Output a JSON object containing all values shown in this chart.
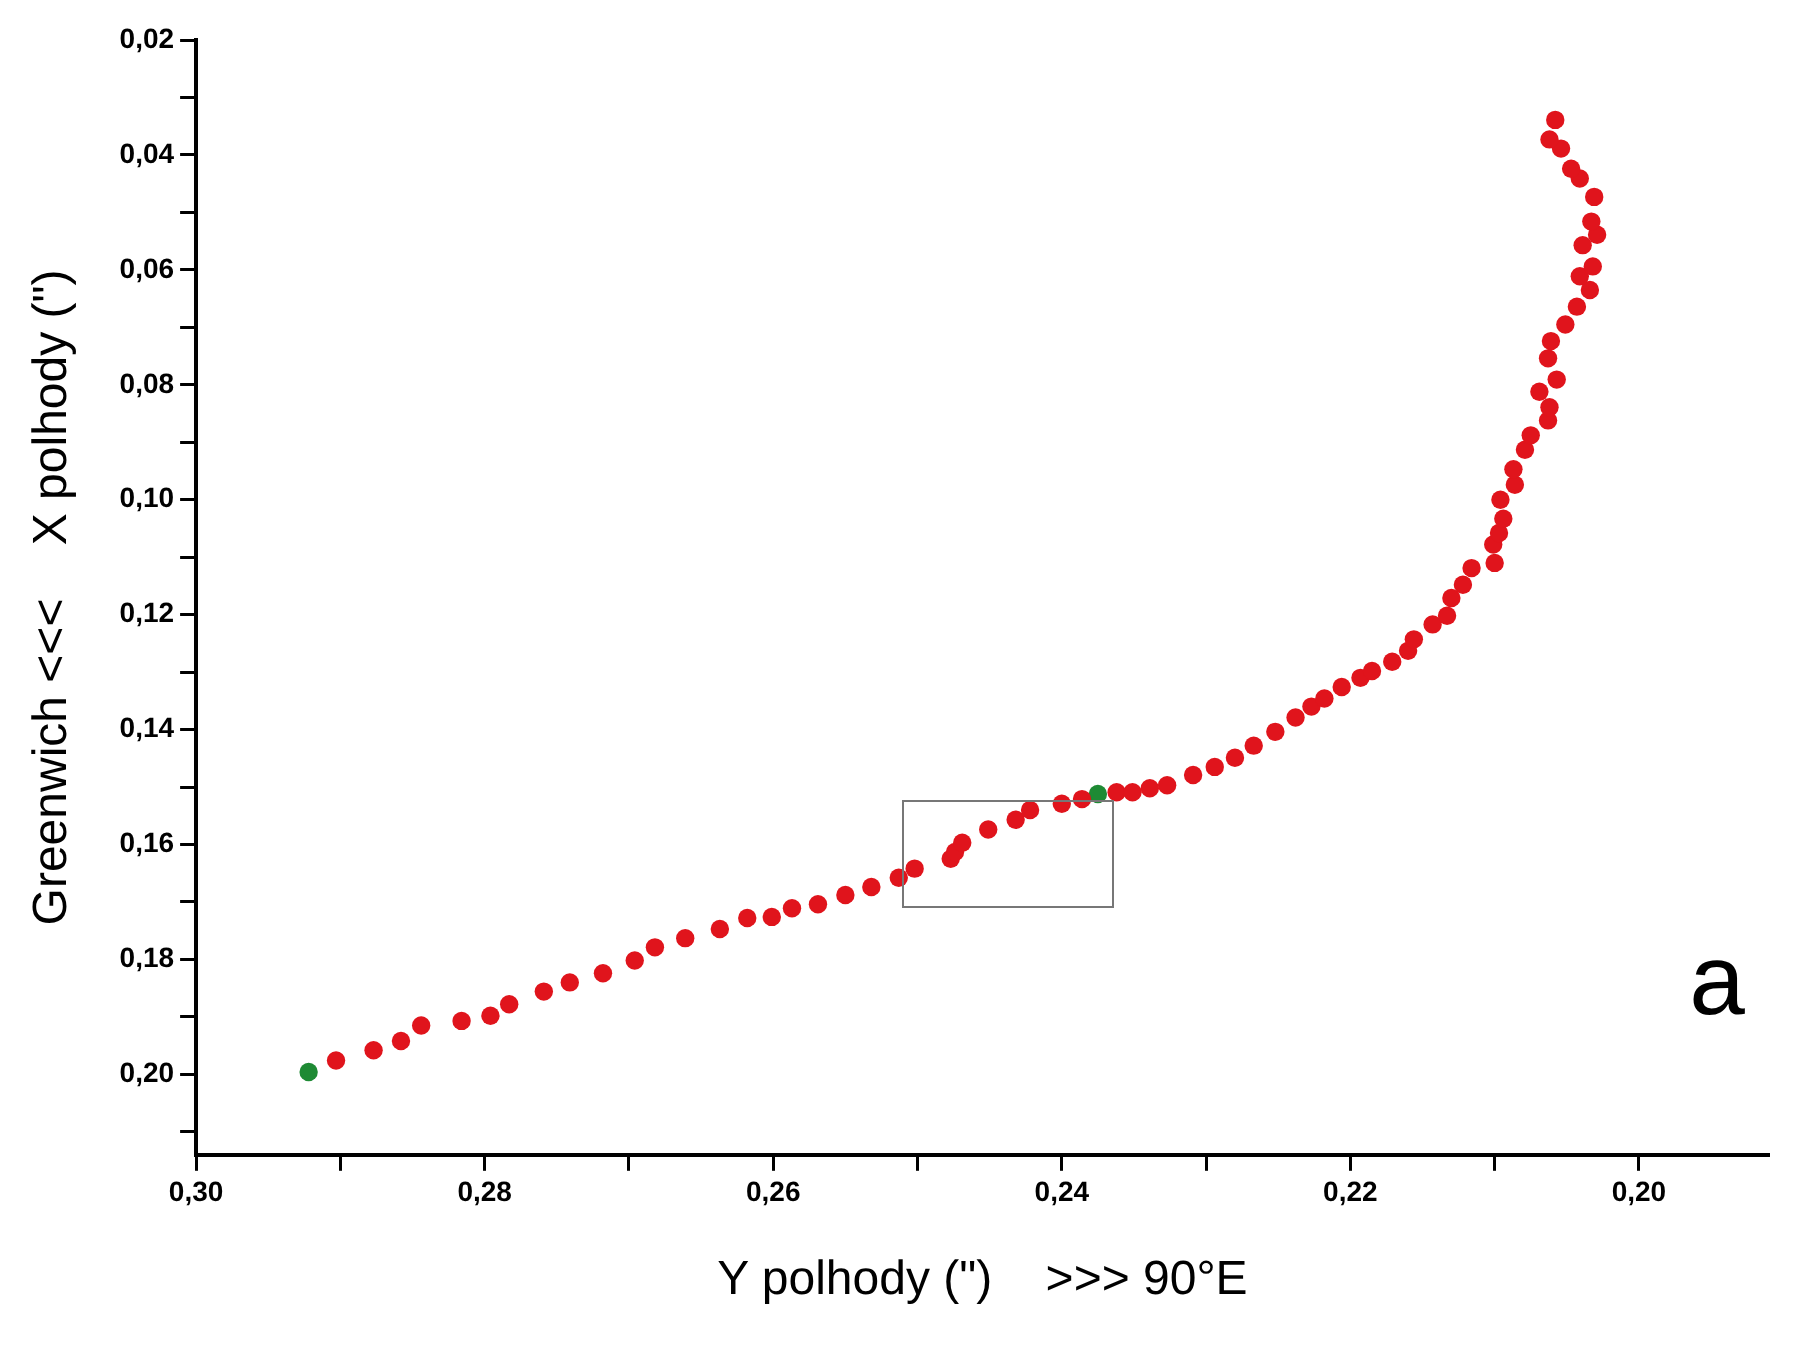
{
  "chart_data": {
    "type": "scatter",
    "xlabel": "Y polhody (\")    >>> 90°E",
    "ylabel": "Greenwich <<<    X polhody (\")",
    "annotations": [
      "a"
    ],
    "xlim": [
      0.3,
      0.191
    ],
    "ylim": [
      0.214,
      0.02
    ],
    "xticks": [
      {
        "value": 0.3,
        "label": "0,30"
      },
      {
        "value": 0.29,
        "label": null
      },
      {
        "value": 0.28,
        "label": "0,28"
      },
      {
        "value": 0.27,
        "label": null
      },
      {
        "value": 0.26,
        "label": "0,26"
      },
      {
        "value": 0.25,
        "label": null
      },
      {
        "value": 0.24,
        "label": "0,24"
      },
      {
        "value": 0.23,
        "label": null
      },
      {
        "value": 0.22,
        "label": "0,22"
      },
      {
        "value": 0.21,
        "label": null
      },
      {
        "value": 0.2,
        "label": "0,20"
      }
    ],
    "yticks": [
      {
        "value": 0.02,
        "label": "0,02"
      },
      {
        "value": 0.03,
        "label": null
      },
      {
        "value": 0.04,
        "label": "0,04"
      },
      {
        "value": 0.05,
        "label": null
      },
      {
        "value": 0.06,
        "label": "0,06"
      },
      {
        "value": 0.07,
        "label": null
      },
      {
        "value": 0.08,
        "label": "0,08"
      },
      {
        "value": 0.09,
        "label": null
      },
      {
        "value": 0.1,
        "label": "0,10"
      },
      {
        "value": 0.11,
        "label": null
      },
      {
        "value": 0.12,
        "label": "0,12"
      },
      {
        "value": 0.13,
        "label": null
      },
      {
        "value": 0.14,
        "label": "0,14"
      },
      {
        "value": 0.15,
        "label": null
      },
      {
        "value": 0.16,
        "label": "0,16"
      },
      {
        "value": 0.17,
        "label": null
      },
      {
        "value": 0.18,
        "label": "0,18"
      },
      {
        "value": 0.19,
        "label": null
      },
      {
        "value": 0.2,
        "label": "0,20"
      },
      {
        "value": 0.21,
        "label": null
      }
    ],
    "marker": "circle",
    "series": [
      {
        "color": "#e0141c",
        "x": [
          0.2903,
          0.2877,
          0.2858,
          0.2844,
          0.2816,
          0.2796,
          0.2783,
          0.2759,
          0.2741,
          0.2718,
          0.2696,
          0.2682,
          0.2661,
          0.2637,
          0.2618,
          0.2601,
          0.2587,
          0.2569,
          0.255,
          0.2532,
          0.2513,
          0.2502,
          0.2477,
          0.2474,
          0.2469,
          0.2451,
          0.2432,
          0.2422,
          0.24,
          0.2386,
          0.2362,
          0.2351,
          0.2339,
          0.2327,
          0.2309,
          0.2294,
          0.228,
          0.2267,
          0.2252,
          0.2238,
          0.2227,
          0.2218,
          0.2206,
          0.2193,
          0.2185,
          0.2171,
          0.216,
          0.2156,
          0.2143,
          0.2133,
          0.213,
          0.2122,
          0.2116,
          0.21,
          0.2101,
          0.2097,
          0.2094,
          0.2096,
          0.2086,
          0.2087,
          0.2079,
          0.2075,
          0.2063,
          0.2062,
          0.2069,
          0.2057,
          0.2063,
          0.2061,
          0.2051,
          0.2043,
          0.2034,
          0.2041,
          0.2032,
          0.2039,
          0.2029,
          0.2033,
          0.2031,
          0.2041,
          0.2047,
          0.2054,
          0.2062,
          0.2058
        ],
        "values": [
          0.1976,
          0.1958,
          0.1942,
          0.1915,
          0.1907,
          0.1898,
          0.1878,
          0.1856,
          0.184,
          0.1824,
          0.1802,
          0.1779,
          0.1763,
          0.1747,
          0.1728,
          0.1726,
          0.1711,
          0.1704,
          0.1688,
          0.1674,
          0.1658,
          0.1642,
          0.1625,
          0.1613,
          0.1597,
          0.1574,
          0.1557,
          0.154,
          0.1529,
          0.1521,
          0.1509,
          0.1509,
          0.1502,
          0.1497,
          0.1479,
          0.1465,
          0.1449,
          0.1428,
          0.1404,
          0.1379,
          0.136,
          0.1346,
          0.1326,
          0.131,
          0.1298,
          0.1282,
          0.1263,
          0.1243,
          0.1217,
          0.1202,
          0.1171,
          0.1148,
          0.1119,
          0.111,
          0.1078,
          0.1058,
          0.1033,
          0.1,
          0.0974,
          0.0947,
          0.0913,
          0.0888,
          0.0862,
          0.0839,
          0.0812,
          0.0791,
          0.0754,
          0.0724,
          0.0695,
          0.0664,
          0.0635,
          0.0611,
          0.0594,
          0.0557,
          0.0539,
          0.0516,
          0.0473,
          0.0441,
          0.0424,
          0.0389,
          0.0373,
          0.0339
        ]
      },
      {
        "color": "#1e8a34",
        "x": [
          0.2922,
          0.2375
        ],
        "values": [
          0.1996,
          0.1512
        ]
      }
    ]
  }
}
